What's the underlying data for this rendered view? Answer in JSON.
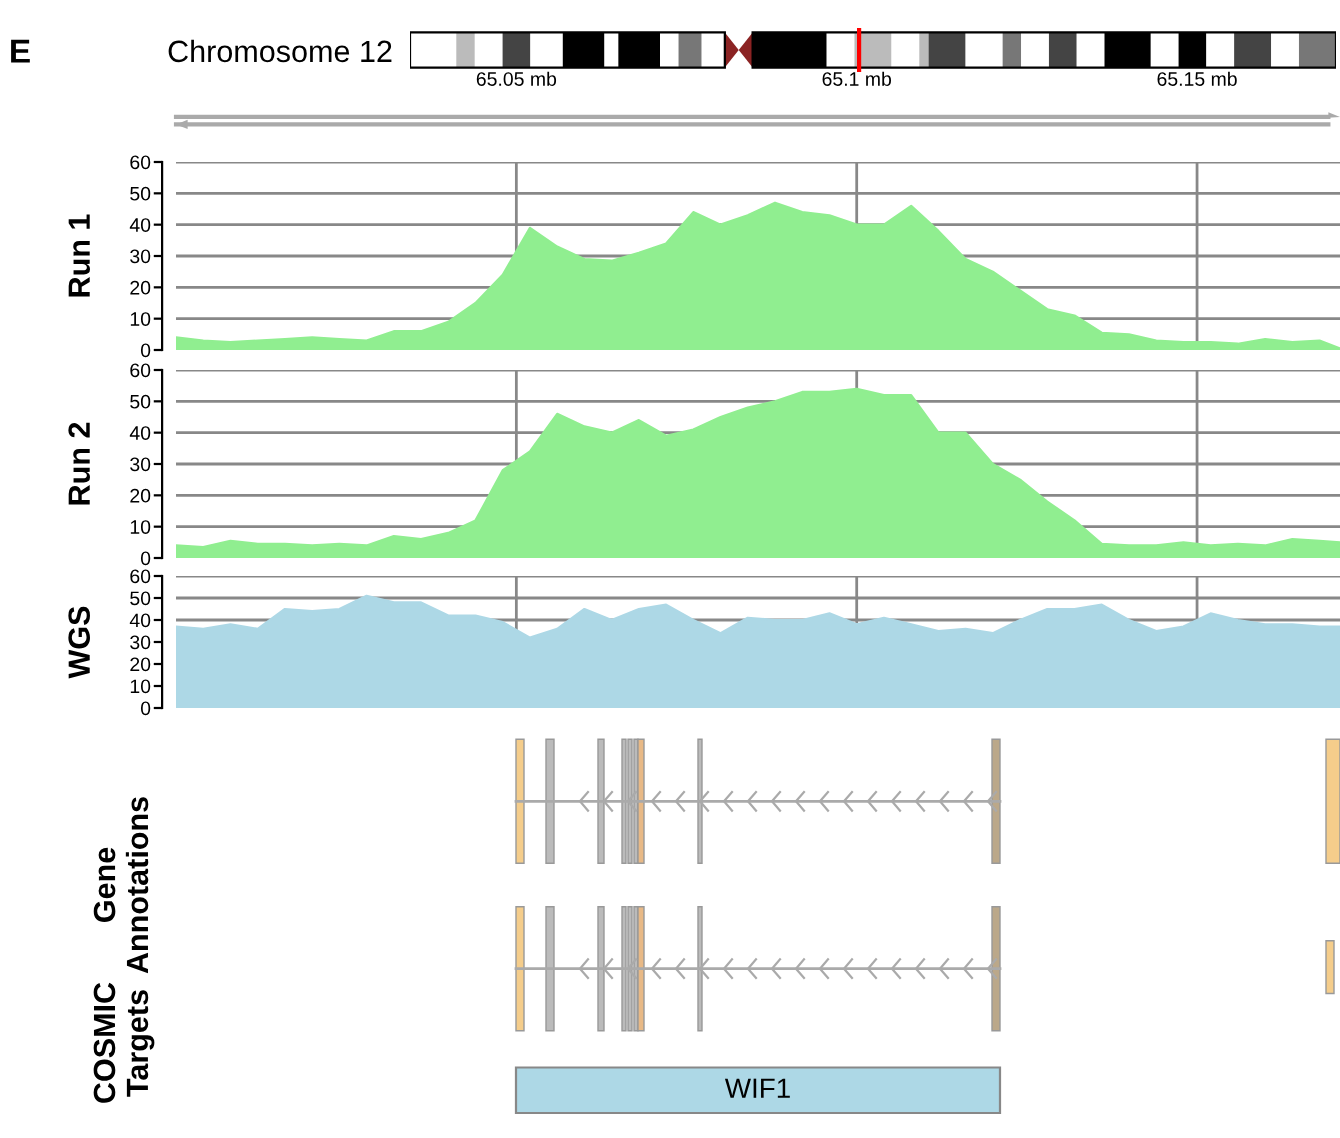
{
  "chart_data": [
    {
      "type": "area",
      "title": "Chromosome 12",
      "annotations": [
        "E"
      ],
      "ylabel": "Run 1",
      "x": [
        65.0,
        65.004,
        65.008,
        65.012,
        65.016,
        65.02,
        65.024,
        65.028,
        65.032,
        65.036,
        65.04,
        65.044,
        65.048,
        65.052,
        65.056,
        65.06,
        65.064,
        65.068,
        65.072,
        65.076,
        65.08,
        65.084,
        65.088,
        65.092,
        65.096,
        65.1,
        65.104,
        65.108,
        65.112,
        65.116,
        65.12,
        65.124,
        65.128,
        65.132,
        65.136,
        65.14,
        65.144,
        65.148,
        65.152,
        65.156,
        65.16,
        65.164,
        65.168,
        65.171
      ],
      "series": [
        {
          "color": "#90ee90",
          "values": [
            4,
            3,
            2.5,
            3,
            3.5,
            4,
            3.5,
            3,
            6,
            6,
            9,
            15,
            24,
            39,
            33,
            29,
            28.5,
            31,
            34,
            44,
            40,
            43,
            47,
            44,
            43,
            40,
            40,
            46,
            38,
            29,
            25,
            19,
            13,
            11,
            5.5,
            5,
            3,
            2.5,
            2.5,
            2,
            3.5,
            2.5,
            3,
            0.5
          ]
        }
      ],
      "xlim": [
        65.0,
        65.171
      ],
      "xticks": [
        {
          "value": 65.05,
          "label": "65.05 mb"
        },
        {
          "value": 65.1,
          "label": "65.1 mb"
        },
        {
          "value": 65.15,
          "label": "65.15 mb"
        }
      ],
      "ylim": [
        0,
        60
      ],
      "yticks": [
        0,
        10,
        20,
        30,
        40,
        50,
        60
      ],
      "grid": true,
      "legend": false
    },
    {
      "type": "area",
      "ylabel": "Run 2",
      "x": [
        65.0,
        65.004,
        65.008,
        65.012,
        65.016,
        65.02,
        65.024,
        65.028,
        65.032,
        65.036,
        65.04,
        65.044,
        65.048,
        65.052,
        65.056,
        65.06,
        65.064,
        65.068,
        65.072,
        65.076,
        65.08,
        65.084,
        65.088,
        65.092,
        65.096,
        65.1,
        65.104,
        65.108,
        65.112,
        65.116,
        65.12,
        65.124,
        65.128,
        65.132,
        65.136,
        65.14,
        65.144,
        65.148,
        65.152,
        65.156,
        65.16,
        65.164,
        65.168,
        65.171
      ],
      "series": [
        {
          "color": "#90ee90",
          "values": [
            4,
            3.5,
            5.5,
            4.5,
            4.5,
            4,
            4.5,
            4,
            7,
            6,
            8,
            12,
            28,
            34,
            46,
            42,
            40,
            44,
            39,
            41,
            45,
            48,
            50,
            53,
            53,
            54,
            52,
            52,
            40,
            40,
            30,
            25,
            18,
            12,
            4.5,
            4,
            4,
            5,
            4,
            4.5,
            4,
            6,
            5.5,
            5
          ]
        }
      ],
      "xlim": [
        65.0,
        65.171
      ],
      "xticks": [
        {
          "value": 65.05,
          "label": null
        },
        {
          "value": 65.1,
          "label": null
        },
        {
          "value": 65.15,
          "label": null
        }
      ],
      "ylim": [
        0,
        60
      ],
      "yticks": [
        0,
        10,
        20,
        30,
        40,
        50,
        60
      ],
      "grid": true,
      "tick_labels": "y",
      "legend": false
    },
    {
      "type": "area",
      "ylabel": "WGS",
      "x": [
        65.0,
        65.004,
        65.008,
        65.012,
        65.016,
        65.02,
        65.024,
        65.028,
        65.032,
        65.036,
        65.04,
        65.044,
        65.048,
        65.052,
        65.056,
        65.06,
        65.064,
        65.068,
        65.072,
        65.076,
        65.08,
        65.084,
        65.088,
        65.092,
        65.096,
        65.1,
        65.104,
        65.108,
        65.112,
        65.116,
        65.12,
        65.124,
        65.128,
        65.132,
        65.136,
        65.14,
        65.144,
        65.148,
        65.152,
        65.156,
        65.16,
        65.164,
        65.168,
        65.171
      ],
      "series": [
        {
          "color": "#add8e6",
          "values": [
            37,
            36,
            38,
            36,
            45,
            44,
            45,
            51,
            48,
            48,
            42,
            42,
            39,
            32,
            36,
            45,
            40,
            45,
            47,
            40,
            34,
            41,
            40,
            40,
            43,
            38,
            41,
            38,
            35,
            36,
            34,
            40,
            45,
            45,
            47,
            40,
            35,
            37,
            43,
            40,
            38,
            38,
            37,
            37
          ]
        }
      ],
      "xlim": [
        65.0,
        65.171
      ],
      "xticks": [
        {
          "value": 65.05,
          "label": null
        },
        {
          "value": 65.1,
          "label": null
        },
        {
          "value": 65.15,
          "label": null
        }
      ],
      "ylim": [
        0,
        60
      ],
      "yticks": [
        0,
        10,
        20,
        30,
        40,
        50,
        60
      ],
      "grid": true,
      "tick_labels": "y",
      "legend": false
    },
    {
      "type": "other",
      "ylabel": "Gene\nAnnotations"
    },
    {
      "type": "other",
      "ylabel": "COSMIC\nTargets",
      "annotations": [
        "WIF1"
      ]
    }
  ]
}
